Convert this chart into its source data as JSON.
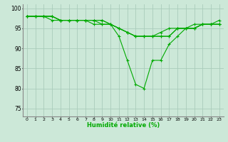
{
  "xlabel": "Humidité relative (%)",
  "xlim": [
    -0.5,
    23.5
  ],
  "ylim": [
    73,
    101
  ],
  "yticks": [
    75,
    80,
    85,
    90,
    95,
    100
  ],
  "xticks": [
    0,
    1,
    2,
    3,
    4,
    5,
    6,
    7,
    8,
    9,
    10,
    11,
    12,
    13,
    14,
    15,
    16,
    17,
    18,
    19,
    20,
    21,
    22,
    23
  ],
  "bg_color": "#cce8d8",
  "grid_color": "#aaccbb",
  "line_color": "#00aa00",
  "series": [
    [
      98,
      98,
      98,
      98,
      97,
      97,
      97,
      97,
      97,
      97,
      96,
      93,
      87,
      81,
      80,
      87,
      87,
      91,
      93,
      95,
      95,
      96,
      96,
      97
    ],
    [
      98,
      98,
      98,
      97,
      97,
      97,
      97,
      97,
      96,
      96,
      96,
      95,
      94,
      93,
      93,
      93,
      93,
      93,
      95,
      95,
      96,
      96,
      96,
      96
    ],
    [
      98,
      98,
      98,
      98,
      97,
      97,
      97,
      97,
      97,
      96,
      96,
      95,
      94,
      93,
      93,
      93,
      94,
      95,
      95,
      95,
      95,
      96,
      96,
      96
    ],
    [
      98,
      98,
      98,
      98,
      97,
      97,
      97,
      97,
      97,
      97,
      96,
      95,
      94,
      93,
      93,
      93,
      93,
      93,
      95,
      95,
      95,
      96,
      96,
      96
    ]
  ]
}
